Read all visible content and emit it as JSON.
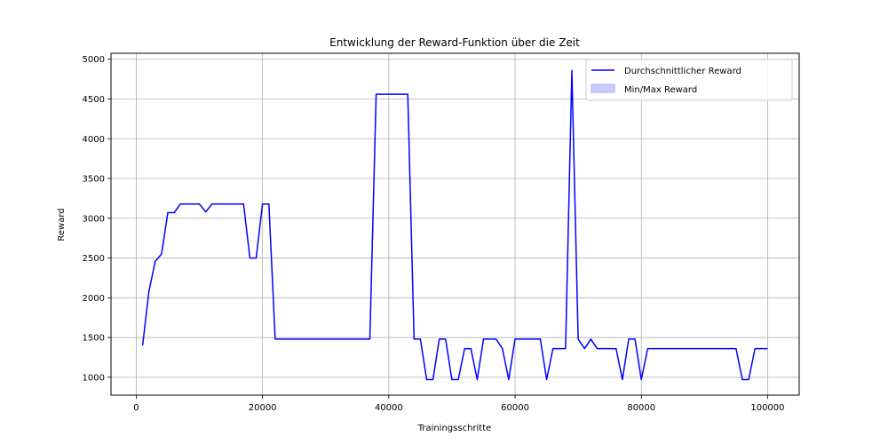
{
  "chart_data": {
    "type": "line",
    "title": "Entwicklung der Reward-Funktion über die Zeit",
    "xlabel": "Trainingsschritte",
    "ylabel": "Reward",
    "xlim": [
      -4000,
      105000
    ],
    "ylim": [
      775,
      5075
    ],
    "xticks": [
      0,
      20000,
      40000,
      60000,
      80000,
      100000
    ],
    "yticks": [
      1000,
      1500,
      2000,
      2500,
      3000,
      3500,
      4000,
      4500,
      5000
    ],
    "grid": true,
    "legend_position": "top-right",
    "legend": [
      {
        "label": "Durchschnittlicher Reward",
        "kind": "line"
      },
      {
        "label": "Min/Max Reward",
        "kind": "area"
      }
    ],
    "colors": {
      "line": "#0000ff",
      "band_fill": "#ccccff",
      "band_edge": "#aaaaff",
      "grid": "#b0b0b0"
    },
    "series": [
      {
        "name": "Durchschnittlicher Reward",
        "x": [
          1000,
          2000,
          3000,
          4000,
          5000,
          6000,
          7000,
          8000,
          9000,
          10000,
          11000,
          12000,
          13000,
          14000,
          15000,
          16000,
          17000,
          18000,
          19000,
          20000,
          21000,
          22000,
          23000,
          24000,
          25000,
          26000,
          27000,
          28000,
          29000,
          30000,
          31000,
          32000,
          33000,
          34000,
          35000,
          36000,
          37000,
          38000,
          39000,
          40000,
          41000,
          42000,
          43000,
          44000,
          45000,
          46000,
          47000,
          48000,
          49000,
          50000,
          51000,
          52000,
          53000,
          54000,
          55000,
          56000,
          57000,
          58000,
          59000,
          60000,
          61000,
          62000,
          63000,
          64000,
          65000,
          66000,
          67000,
          68000,
          69000,
          70000,
          71000,
          72000,
          73000,
          74000,
          75000,
          76000,
          77000,
          78000,
          79000,
          80000,
          81000,
          82000,
          83000,
          84000,
          85000,
          86000,
          87000,
          88000,
          89000,
          90000,
          91000,
          92000,
          93000,
          94000,
          95000,
          96000,
          97000,
          98000,
          99000,
          100000
        ],
        "y": [
          1400,
          2080,
          2460,
          2550,
          3070,
          3070,
          3180,
          3180,
          3180,
          3180,
          3080,
          3180,
          3180,
          3180,
          3180,
          3180,
          3180,
          2500,
          2500,
          3180,
          3180,
          1480,
          1480,
          1480,
          1480,
          1480,
          1480,
          1480,
          1480,
          1480,
          1480,
          1480,
          1480,
          1480,
          1480,
          1480,
          1480,
          4560,
          4560,
          4560,
          4560,
          4560,
          4560,
          1480,
          1480,
          970,
          970,
          1480,
          1480,
          970,
          970,
          1360,
          1360,
          970,
          1480,
          1480,
          1480,
          1360,
          970,
          1480,
          1480,
          1480,
          1480,
          1480,
          970,
          1360,
          1360,
          1360,
          4860,
          1480,
          1360,
          1480,
          1360,
          1360,
          1360,
          1360,
          970,
          1480,
          1480,
          970,
          1360,
          1360,
          1360,
          1360,
          1360,
          1360,
          1360,
          1360,
          1360,
          1360,
          1360,
          1360,
          1360,
          1360,
          1360,
          970,
          970,
          1360,
          1360,
          1360
        ]
      }
    ]
  }
}
